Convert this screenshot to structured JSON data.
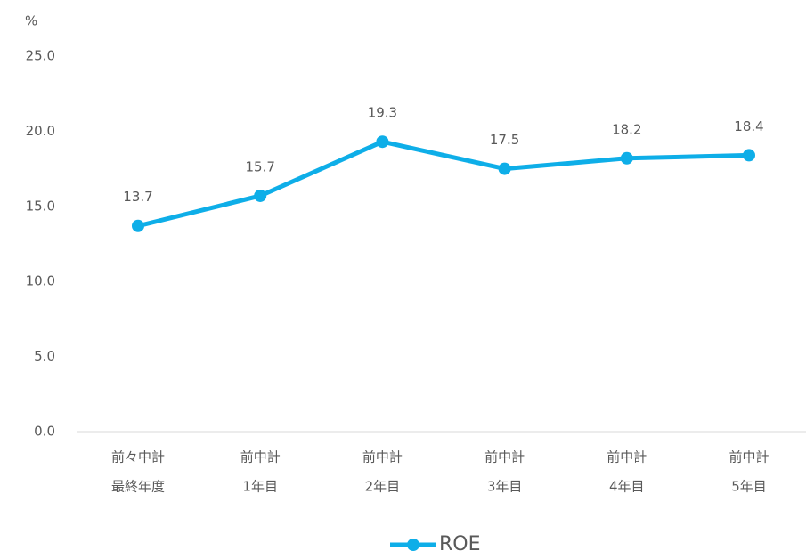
{
  "chart_data": {
    "type": "line",
    "y_label": "%",
    "categories": [
      [
        "前々中計",
        "最終年度"
      ],
      [
        "前中計",
        "1年目"
      ],
      [
        "前中計",
        "2年目"
      ],
      [
        "前中計",
        "3年目"
      ],
      [
        "前中計",
        "4年目"
      ],
      [
        "前中計",
        "5年目"
      ]
    ],
    "series": [
      {
        "name": "ROE",
        "color": "#0eaee8",
        "values": [
          13.7,
          15.7,
          19.3,
          17.5,
          18.2,
          18.4
        ]
      }
    ],
    "ylim": [
      0,
      25
    ],
    "yticks": [
      {
        "value": 0,
        "label": "0.0"
      },
      {
        "value": 5,
        "label": "5.0"
      },
      {
        "value": 10,
        "label": "10.0"
      },
      {
        "value": 15,
        "label": "15.0"
      },
      {
        "value": 20,
        "label": "20.0"
      },
      {
        "value": 25,
        "label": "25.0"
      }
    ],
    "grid": false,
    "legend": "bottom"
  }
}
